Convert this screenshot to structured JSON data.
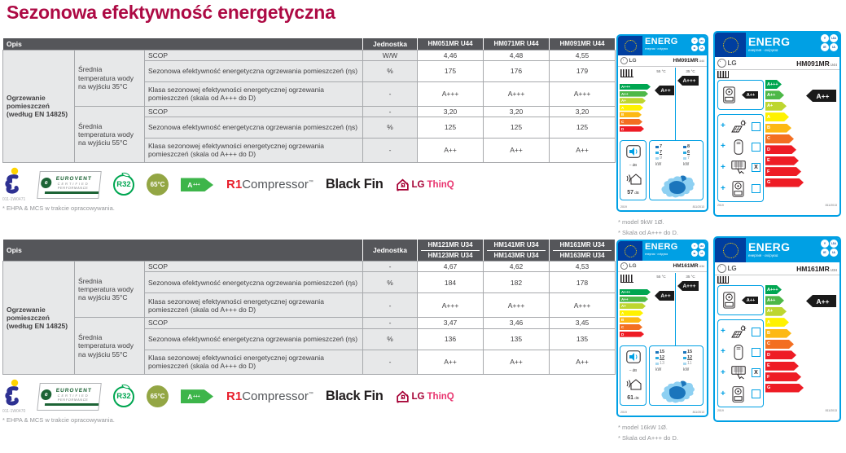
{
  "title": "Sezonowa efektywność energetyczna",
  "footnote": "* EHPA & MCS w trakcie opracowywania.",
  "rl": {
    "group": "Ogrzewanie pomieszczeń (według EN 14825)",
    "t35": "Średnia temperatura wody na wyjściu 35°C",
    "t55": "Średnia temperatura wody na wyjściu 55°C",
    "scop": "SCOP",
    "eta": "Sezonowa efektywność energetyczna ogrzewania pomieszczeń (ηs)",
    "klasa": "Klasa sezonowej efektywności energetycznej ogrzewania pomieszczeń (skala od A+++ do D)"
  },
  "t": [
    {
      "opis": "Opis",
      "jedn": "Jednostka",
      "m": [
        {
          "a": "HM051MR U44",
          "b": ""
        },
        {
          "a": "HM071MR U44",
          "b": ""
        },
        {
          "a": "HM091MR U44",
          "b": ""
        }
      ],
      "u": [
        "W/W",
        "%",
        "-",
        "-",
        "%",
        "-"
      ],
      "v": [
        [
          "4,46",
          "4,48",
          "4,55"
        ],
        [
          "175",
          "176",
          "179"
        ],
        [
          "A+++",
          "A+++",
          "A+++"
        ],
        [
          "3,20",
          "3,20",
          "3,20"
        ],
        [
          "125",
          "125",
          "125"
        ],
        [
          "A++",
          "A++",
          "A++"
        ]
      ],
      "code": "011-1W0471"
    },
    {
      "opis": "Opis",
      "jedn": "Jednostka",
      "m": [
        {
          "a": "HM121MR U34",
          "b": "HM123MR U34"
        },
        {
          "a": "HM141MR U34",
          "b": "HM143MR U34"
        },
        {
          "a": "HM161MR U34",
          "b": "HM163MR U34"
        }
      ],
      "u": [
        "-",
        "%",
        "-",
        "-",
        "%",
        "-"
      ],
      "v": [
        [
          "4,67",
          "4,62",
          "4,53"
        ],
        [
          "184",
          "182",
          "178"
        ],
        [
          "A+++",
          "A+++",
          "A+++"
        ],
        [
          "3,47",
          "3,46",
          "3,45"
        ],
        [
          "136",
          "135",
          "135"
        ],
        [
          "A++",
          "A++",
          "A++"
        ]
      ],
      "code": "011-1W0470"
    }
  ],
  "logos": {
    "ev_e": "e",
    "eurovent1": "EUROVENT",
    "eurovent2": "CERTIFIED",
    "eurovent3": "PERFORMANCE",
    "r32": "R32",
    "c65": "65°C",
    "a": "A",
    "a_sup": "+++",
    "r1": "R1",
    "compressor": "Compressor",
    "tm": "™",
    "blackfin": "Black Fin",
    "lg": "LG",
    "thinq": "ThinQ"
  },
  "el": {
    "pairs": [
      {
        "left": {
          "energ": "ENERG",
          "sub": "енергия · ενέργεια",
          "b": [
            "Y",
            "IJA",
            "IE",
            "IA"
          ],
          "brand": "LG",
          "model": "HM091MR",
          "suffix": "U44",
          "temp_a": "55 °C",
          "temp_b": "35 °C",
          "scale": [
            "A+++",
            "A++",
            "A+",
            "A",
            "B",
            "C",
            "D"
          ],
          "arrow_a": "A++",
          "arrow_b": "A+++",
          "noise_in": "–",
          "noise_in_u": "dB",
          "noise_out": "57",
          "noise_out_u": "dB",
          "kw_a": [
            "7",
            "7",
            "9"
          ],
          "kw_b": [
            "8",
            "6",
            "7"
          ],
          "kw_u": "kW",
          "year": "2019",
          "reg": "811/2013"
        },
        "right": {
          "energ": "ENERG",
          "sub": "енергия · ενέργεια",
          "b": [
            "Y",
            "IJA",
            "IE",
            "IA"
          ],
          "brand": "LG",
          "model": "HM091MR",
          "suffix": "U44",
          "plus": "+",
          "arrow_small": "A++",
          "scale": [
            "A+++",
            "A++",
            "A+",
            "A",
            "B",
            "C",
            "D",
            "E",
            "F",
            "G"
          ],
          "arrow": "A++",
          "checks": [
            "",
            "",
            "X",
            ""
          ],
          "year": "2019",
          "reg": "811/2013"
        },
        "cap1": "* model 9kW 1Ø.",
        "cap2": "* Skala od A+++ do D."
      },
      {
        "left": {
          "energ": "ENERG",
          "sub": "енергия · ενέργεια",
          "b": [
            "Y",
            "IJA",
            "IE",
            "IA"
          ],
          "brand": "LG",
          "model": "HM161MR",
          "suffix": "U34",
          "temp_a": "55 °C",
          "temp_b": "35 °C",
          "scale": [
            "A+++",
            "A++",
            "A+",
            "A",
            "B",
            "C",
            "D"
          ],
          "arrow_a": "A++",
          "arrow_b": "A+++",
          "noise_in": "–",
          "noise_in_u": "dB",
          "noise_out": "61",
          "noise_out_u": "dB",
          "kw_a": [
            "15",
            "12",
            "13"
          ],
          "kw_b": [
            "15",
            "12",
            "11"
          ],
          "kw_u": "kW",
          "year": "2019",
          "reg": "811/2013"
        },
        "right": {
          "energ": "ENERG",
          "sub": "енергия · ενέργεια",
          "b": [
            "Y",
            "IJA",
            "IE",
            "IA"
          ],
          "brand": "LG",
          "model": "HM161MR",
          "suffix": "U34",
          "plus": "+",
          "arrow_small": "A++",
          "scale": [
            "A+++",
            "A++",
            "A+",
            "A",
            "B",
            "C",
            "D",
            "E",
            "F",
            "G"
          ],
          "arrow": "A++",
          "checks": [
            "",
            "",
            "X",
            ""
          ],
          "year": "2019",
          "reg": "811/2013"
        },
        "cap1": "* model 16kW 1Ø.",
        "cap2": "* Skala od A+++ do D."
      }
    ]
  }
}
